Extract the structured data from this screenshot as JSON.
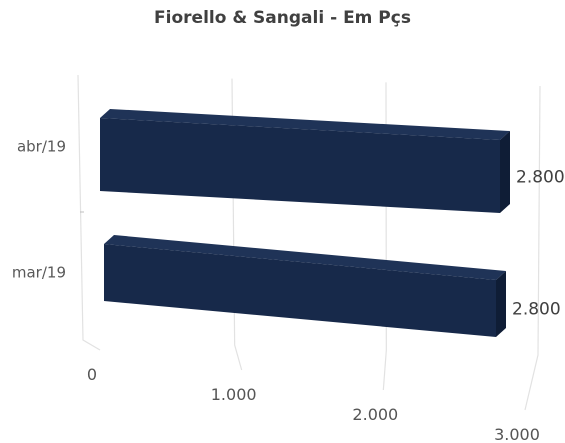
{
  "chart_data": {
    "type": "bar",
    "orientation": "horizontal",
    "style": "3d",
    "title": "Fiorello & Sangali - Em Pçs",
    "categories": [
      "abr/19",
      "mar/19"
    ],
    "series": [
      {
        "values": [
          2800,
          2800
        ]
      }
    ],
    "data_labels": [
      "2.800",
      "2.800"
    ],
    "x_ticks": [
      "0",
      "1.000",
      "2.000",
      "3.000"
    ],
    "xlim": [
      0,
      3000
    ],
    "xlabel": "",
    "ylabel": "",
    "grid": true,
    "legend": "none",
    "bar_color": "#17294a",
    "bar_top_color": "#1f3357",
    "bar_side_color": "#0f1d36",
    "grid_color": "#e2e2e2"
  }
}
